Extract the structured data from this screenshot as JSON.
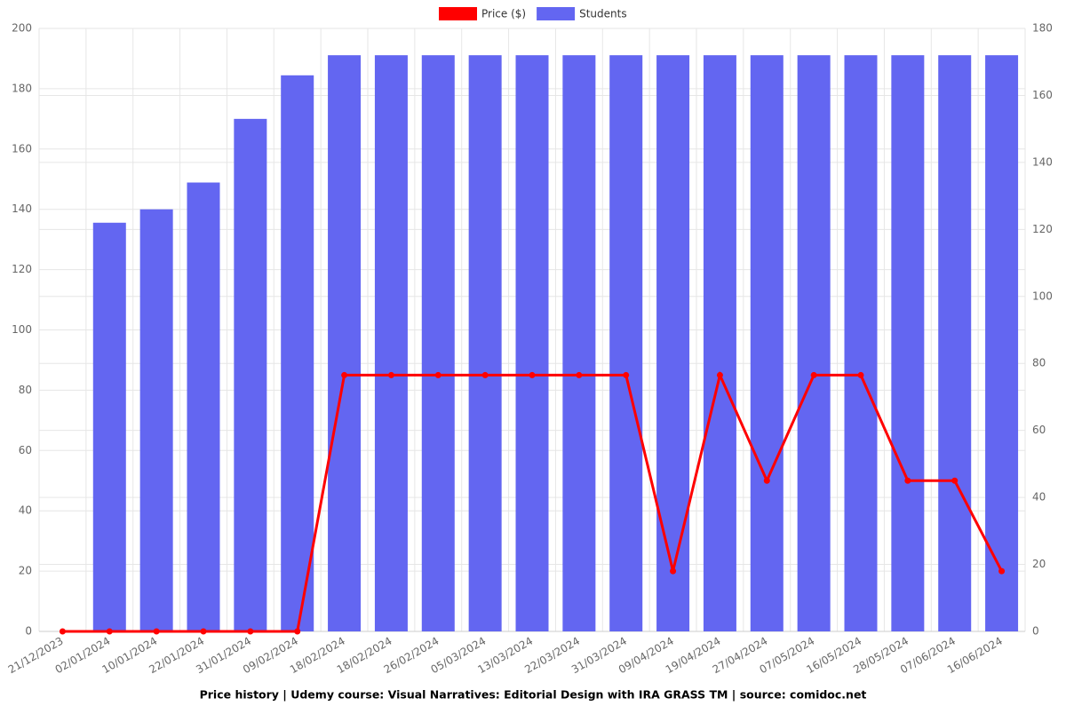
{
  "chart_data": {
    "type": "bar-line",
    "title": "Price history | Udemy course: Visual Narratives: Editorial Design with IRA GRASS TM | source: comidoc.net",
    "categories": [
      "21/12/2023",
      "02/01/2024",
      "10/01/2024",
      "22/01/2024",
      "31/01/2024",
      "09/02/2024",
      "18/02/2024",
      "18/02/2024",
      "26/02/2024",
      "05/03/2024",
      "13/03/2024",
      "22/03/2024",
      "31/03/2024",
      "09/04/2024",
      "19/04/2024",
      "27/04/2024",
      "07/05/2024",
      "16/05/2024",
      "28/05/2024",
      "07/06/2024",
      "16/06/2024"
    ],
    "series": [
      {
        "name": "Price ($)",
        "color": "#ff0000",
        "kind": "line",
        "axis": "y",
        "values": [
          0,
          0,
          0,
          0,
          0,
          0,
          85,
          85,
          85,
          85,
          85,
          85,
          85,
          20,
          85,
          50,
          85,
          85,
          50,
          50,
          20
        ]
      },
      {
        "name": "Students",
        "color": "#6366f1",
        "kind": "bar",
        "axis": "y2",
        "values": [
          null,
          122,
          126,
          134,
          153,
          166,
          172,
          172,
          172,
          172,
          172,
          172,
          172,
          172,
          172,
          172,
          172,
          172,
          172,
          172,
          172
        ]
      }
    ],
    "ylim": [
      0,
      200
    ],
    "yticks": [
      0,
      20,
      40,
      60,
      80,
      100,
      120,
      140,
      160,
      180,
      200
    ],
    "y2lim": [
      0,
      180
    ],
    "y2ticks": [
      0,
      20,
      40,
      60,
      80,
      100,
      120,
      140,
      160,
      180
    ],
    "grid": true,
    "legend": "top"
  }
}
